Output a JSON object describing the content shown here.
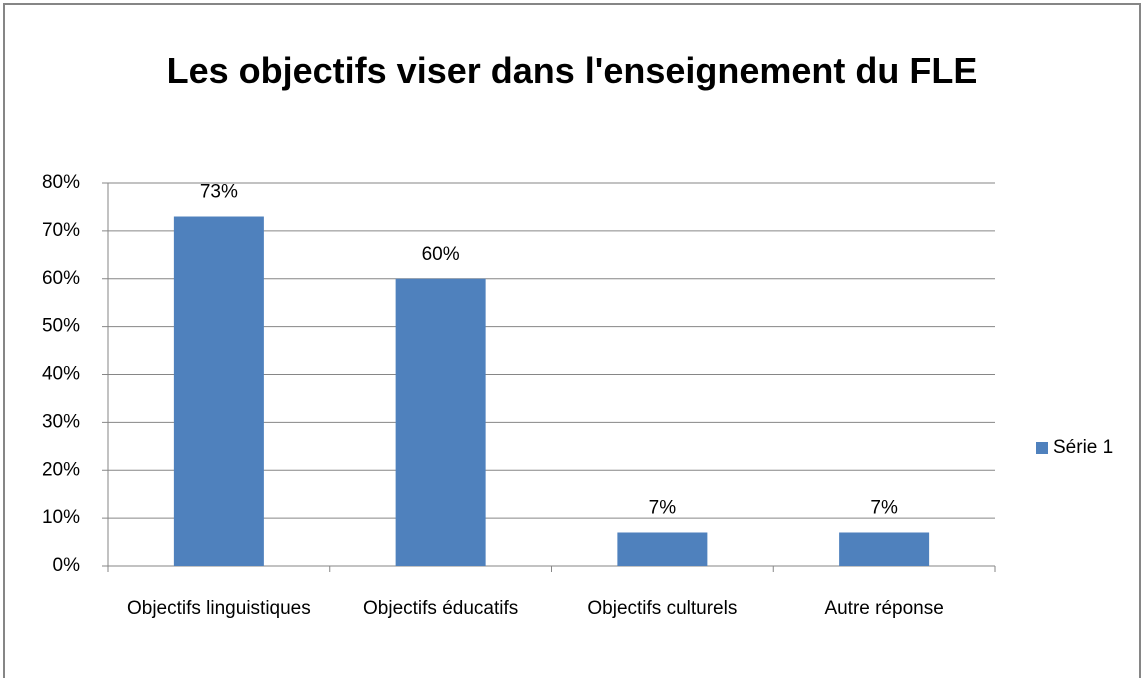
{
  "chart_data": {
    "type": "bar",
    "title": "Les objectifs viser dans l'enseignement du FLE",
    "categories": [
      "Objectifs linguistiques",
      "Objectifs éducatifs",
      "Objectifs culturels",
      "Autre réponse"
    ],
    "series": [
      {
        "name": "Série 1",
        "color": "#4f81bd",
        "values": [
          73,
          60,
          7,
          7
        ],
        "value_labels": [
          "73%",
          "60%",
          "7%",
          "7%"
        ]
      }
    ],
    "ylim": [
      0,
      80
    ],
    "yticks": [
      {
        "value": 0,
        "label": "0%"
      },
      {
        "value": 10,
        "label": "10%"
      },
      {
        "value": 20,
        "label": "20%"
      },
      {
        "value": 30,
        "label": "30%"
      },
      {
        "value": 40,
        "label": "40%"
      },
      {
        "value": 50,
        "label": "50%"
      },
      {
        "value": 60,
        "label": "60%"
      },
      {
        "value": 70,
        "label": "70%"
      },
      {
        "value": 80,
        "label": "80%"
      }
    ],
    "grid": true,
    "legend": "right"
  }
}
